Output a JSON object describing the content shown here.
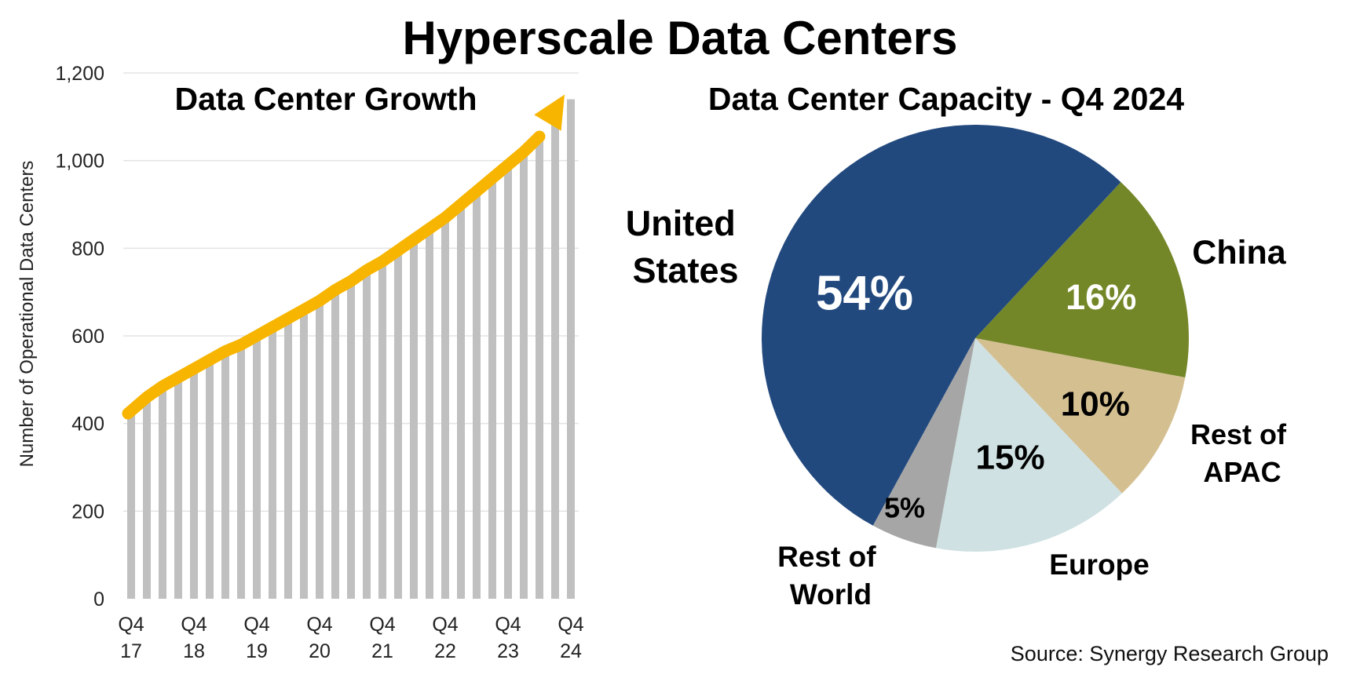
{
  "title": "Hyperscale Data Centers",
  "source": "Source: Synergy Research Group",
  "colors": {
    "bar": "#c0c0c0",
    "arrow": "#f7b500",
    "grid": "#e3e3e3"
  },
  "chart_data": [
    {
      "type": "bar",
      "title": "Data Center Growth",
      "ylabel": "Number  of Operational Data Centers",
      "xlabel": "",
      "ylim": [
        0,
        1200
      ],
      "yticks": [
        "0",
        "200",
        "400",
        "600",
        "800",
        "1,000",
        "1,200"
      ],
      "ytick_values": [
        0,
        200,
        400,
        600,
        800,
        1000,
        1200
      ],
      "xtick_labels": [
        {
          "top": "Q4",
          "bottom": "17"
        },
        {
          "top": "Q4",
          "bottom": "18"
        },
        {
          "top": "Q4",
          "bottom": "19"
        },
        {
          "top": "Q4",
          "bottom": "20"
        },
        {
          "top": "Q4",
          "bottom": "21"
        },
        {
          "top": "Q4",
          "bottom": "22"
        },
        {
          "top": "Q4",
          "bottom": "23"
        },
        {
          "top": "Q4",
          "bottom": "24"
        }
      ],
      "categories": [
        "Q4 17",
        "Q1 18",
        "Q2 18",
        "Q3 18",
        "Q4 18",
        "Q1 19",
        "Q2 19",
        "Q3 19",
        "Q4 19",
        "Q1 20",
        "Q2 20",
        "Q3 20",
        "Q4 20",
        "Q1 21",
        "Q2 21",
        "Q3 21",
        "Q4 21",
        "Q1 22",
        "Q2 22",
        "Q3 22",
        "Q4 22",
        "Q1 23",
        "Q2 23",
        "Q3 23",
        "Q4 23",
        "Q1 24",
        "Q2 24",
        "Q3 24",
        "Q4 24"
      ],
      "values": [
        430,
        460,
        485,
        505,
        525,
        545,
        565,
        580,
        600,
        620,
        640,
        660,
        680,
        705,
        725,
        750,
        770,
        795,
        820,
        845,
        870,
        900,
        930,
        960,
        990,
        1020,
        1055,
        1095,
        1140
      ],
      "trend": "up",
      "grid": true
    },
    {
      "type": "pie",
      "title": "Data Center Capacity - Q4 2024",
      "slices": [
        {
          "name": "United States",
          "value": 54,
          "label": "54%",
          "color": "#22497e",
          "label_color": "#ffffff"
        },
        {
          "name": "China",
          "value": 16,
          "label": "16%",
          "color": "#738728",
          "label_color": "#ffffff"
        },
        {
          "name": "Rest of APAC",
          "value": 10,
          "label": "10%",
          "color": "#d4bf91",
          "label_color": "#000000"
        },
        {
          "name": "Europe",
          "value": 15,
          "label": "15%",
          "color": "#cfe1e2",
          "label_color": "#000000"
        },
        {
          "name": "Rest of World",
          "value": 5,
          "label": "5%",
          "color": "#a6a6a6",
          "label_color": "#000000"
        }
      ],
      "category_labels": {
        "united_states": [
          "United",
          "States"
        ],
        "china": [
          "China"
        ],
        "rest_of_apac": [
          "Rest of",
          "APAC"
        ],
        "europe": [
          "Europe"
        ],
        "rest_of_world": [
          "Rest of",
          "World"
        ]
      }
    }
  ]
}
